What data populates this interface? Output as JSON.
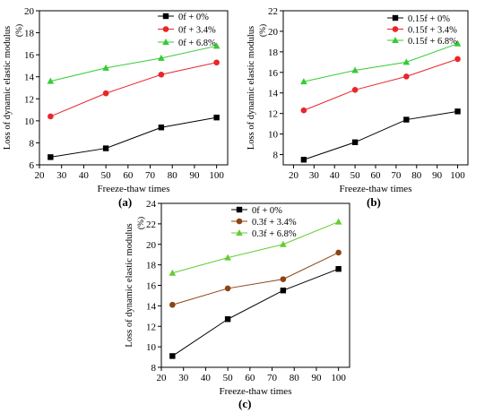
{
  "charts": [
    {
      "panel_label": "(a)",
      "chart_data": {
        "type": "line",
        "x": [
          25,
          50,
          75,
          100
        ],
        "xlabel": "Freeze-thaw times",
        "ylabel": "Loss of dynamic elastic modulus",
        "yunit": "(%)",
        "xlim": [
          20,
          105
        ],
        "ylim": [
          6,
          20
        ],
        "xticks": [
          20,
          30,
          40,
          50,
          60,
          70,
          80,
          90,
          100
        ],
        "yticks": [
          6,
          8,
          10,
          12,
          14,
          16,
          18,
          20
        ],
        "grid": false,
        "legend": "top-right",
        "series": [
          {
            "name": "0f + 0%",
            "color": "#000000",
            "marker": "square",
            "values": [
              6.7,
              7.5,
              9.4,
              10.3
            ]
          },
          {
            "name": "0f + 3.4%",
            "color": "#e8262b",
            "marker": "circle",
            "values": [
              10.4,
              12.5,
              14.2,
              15.3
            ]
          },
          {
            "name": "0f + 6.8%",
            "color": "#33cc33",
            "marker": "triangle",
            "values": [
              13.6,
              14.8,
              15.7,
              16.8
            ]
          }
        ]
      }
    },
    {
      "panel_label": "(b)",
      "chart_data": {
        "type": "line",
        "x": [
          25,
          50,
          75,
          100
        ],
        "xlabel": "Freeze-thaw times",
        "ylabel": "Loss of dynamic elastic modulus",
        "yunit": "(%)",
        "xlim": [
          15,
          105
        ],
        "ylim": [
          7,
          22
        ],
        "xticks": [
          20,
          30,
          40,
          50,
          60,
          70,
          80,
          90,
          100
        ],
        "yticks": [
          8,
          10,
          12,
          14,
          16,
          18,
          20,
          22
        ],
        "grid": false,
        "legend": "top-left",
        "series": [
          {
            "name": "0.15f + 0%",
            "color": "#000000",
            "marker": "square",
            "values": [
              7.5,
              9.2,
              11.4,
              12.2
            ]
          },
          {
            "name": "0.15f + 3.4%",
            "color": "#e8262b",
            "marker": "circle",
            "values": [
              12.3,
              14.3,
              15.6,
              17.3
            ]
          },
          {
            "name": "0.15f + 6.8%",
            "color": "#33cc33",
            "marker": "triangle",
            "values": [
              15.1,
              16.2,
              17.0,
              18.8
            ]
          }
        ]
      }
    },
    {
      "panel_label": "(c)",
      "chart_data": {
        "type": "line",
        "x": [
          25,
          50,
          75,
          100
        ],
        "xlabel": "Freeze-thaw times",
        "ylabel": "Loss of dynamic elastic modulus",
        "yunit": "(%)",
        "xlim": [
          20,
          105
        ],
        "ylim": [
          8,
          24
        ],
        "xticks": [
          20,
          30,
          40,
          50,
          60,
          70,
          80,
          90,
          100
        ],
        "yticks": [
          8,
          10,
          12,
          14,
          16,
          18,
          20,
          22,
          24
        ],
        "grid": false,
        "legend": "top-left",
        "series": [
          {
            "name": "0f + 0%",
            "color": "#000000",
            "marker": "square",
            "values": [
              9.1,
              12.7,
              15.5,
              17.6
            ]
          },
          {
            "name": "0.3f + 3.4%",
            "color": "#8b4513",
            "marker": "circle",
            "values": [
              14.1,
              15.7,
              16.6,
              19.2
            ]
          },
          {
            "name": "0.3f + 6.8%",
            "color": "#66cc33",
            "marker": "triangle",
            "values": [
              17.2,
              18.7,
              20.0,
              22.2
            ]
          }
        ]
      }
    }
  ]
}
